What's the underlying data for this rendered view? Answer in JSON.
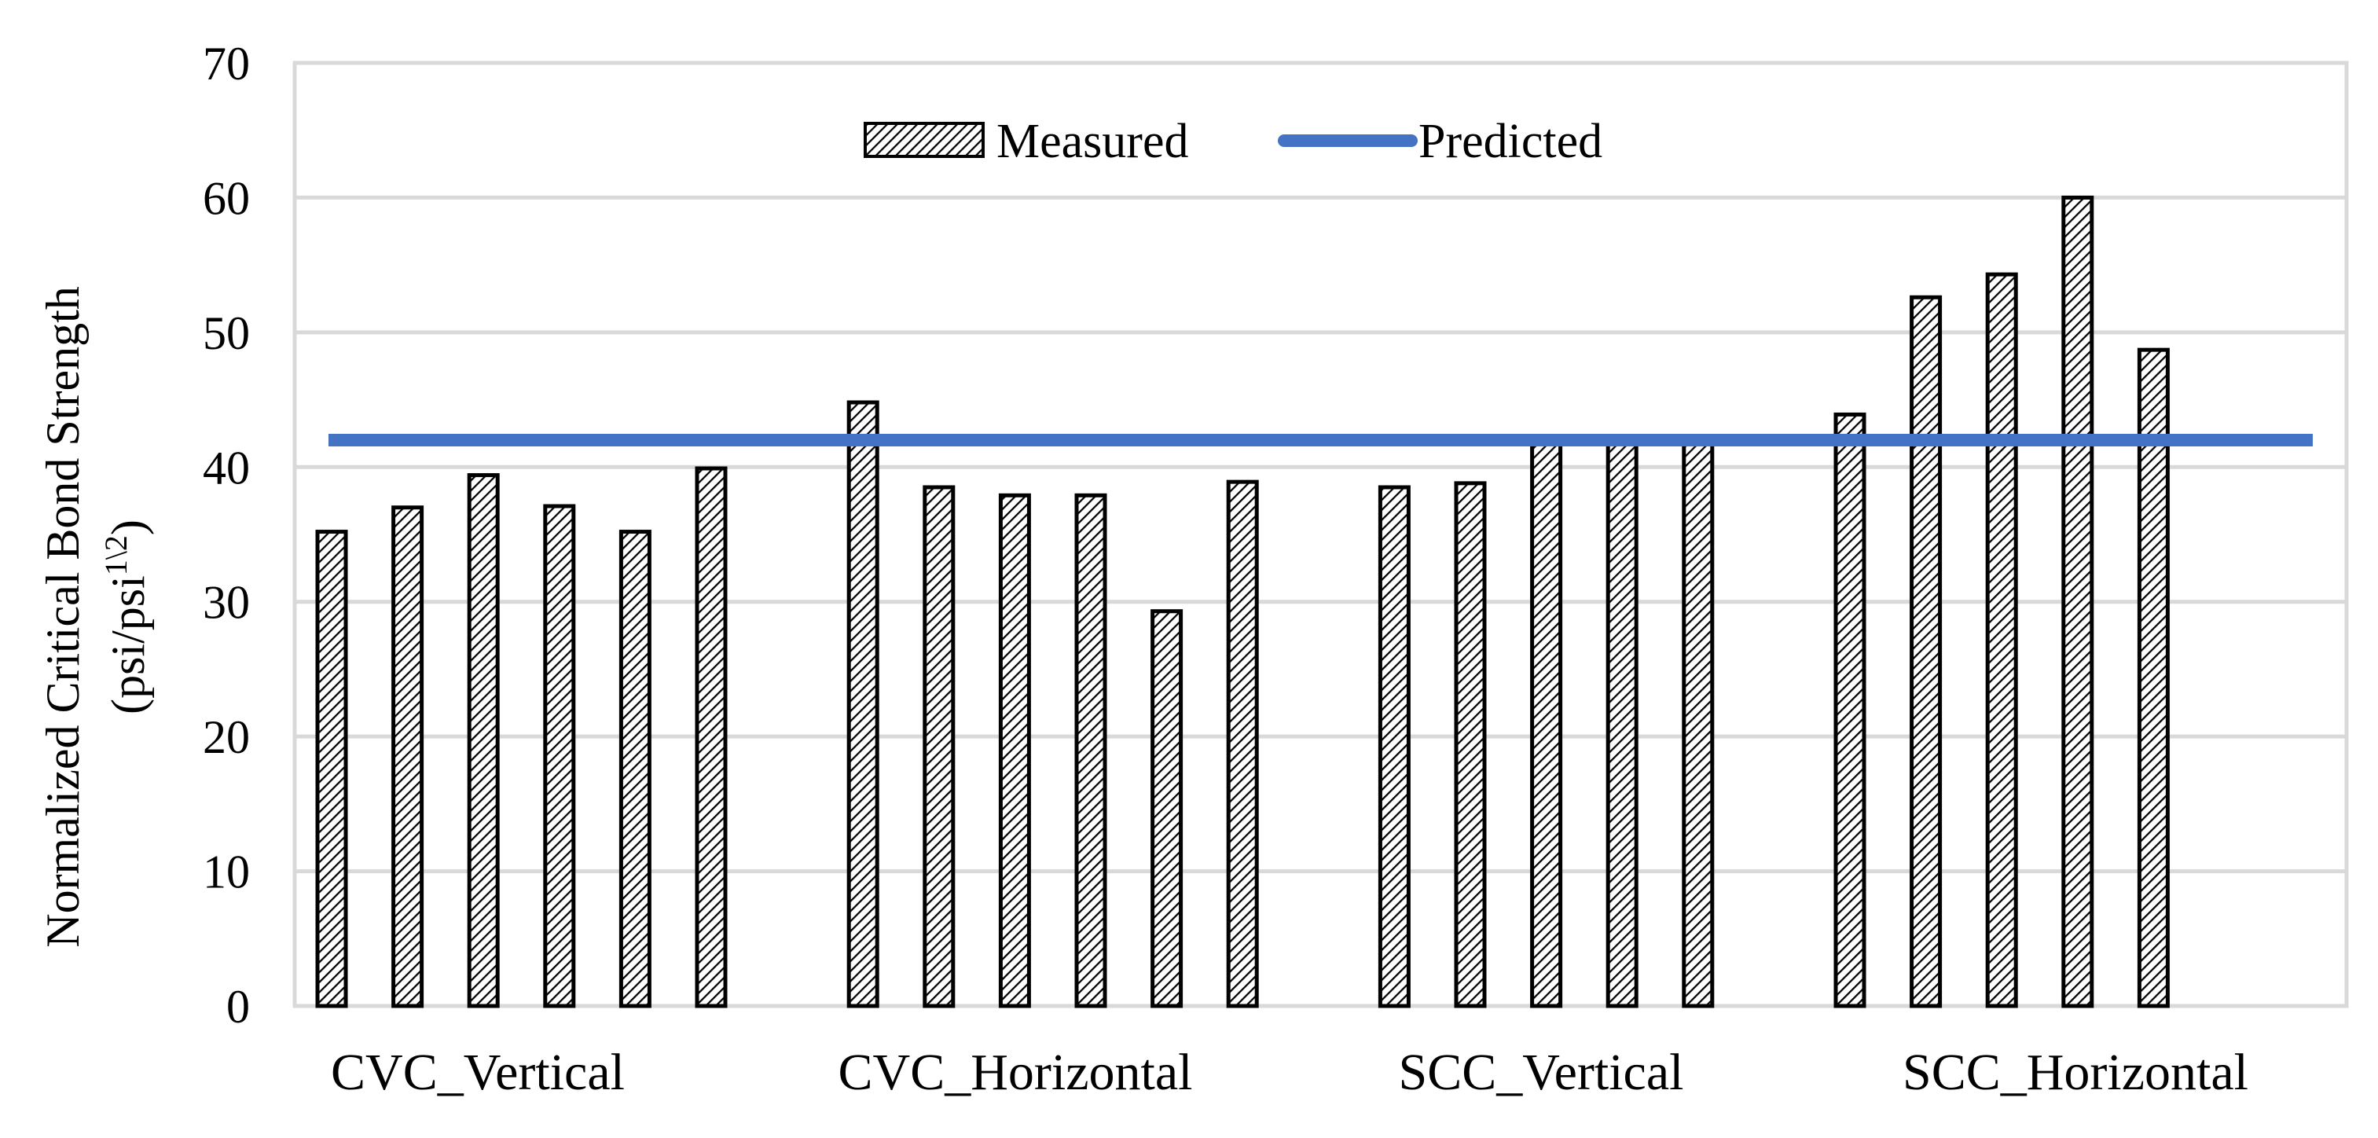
{
  "chart_data": {
    "type": "bar",
    "title": "",
    "xlabel": "",
    "ylabel": "Normalized Critical Bond Strength",
    "ylabel_line2": "(psi/psi",
    "ylabel_sup": "1\\2",
    "ylabel_close": ")",
    "ylim": [
      0,
      70
    ],
    "yticks": [
      0,
      10,
      20,
      30,
      40,
      50,
      60,
      70
    ],
    "yticks_text": [
      "0",
      "10",
      "20",
      "30",
      "40",
      "50",
      "60",
      "70"
    ],
    "grid": true,
    "legend_position": "top-center",
    "groups": [
      {
        "label": "CVC_Vertical",
        "values": [
          35.2,
          37.0,
          39.4,
          37.1,
          35.2,
          39.9
        ]
      },
      {
        "label": "CVC_Horizontal",
        "values": [
          44.8,
          38.5,
          37.9,
          37.9,
          29.3,
          38.9
        ]
      },
      {
        "label": "SCC_Vertical",
        "values": [
          38.5,
          38.8,
          41.9,
          42.3,
          41.9
        ]
      },
      {
        "label": "SCC_Horizontal",
        "values": [
          43.9,
          52.6,
          54.3,
          60.0,
          48.7
        ]
      }
    ],
    "series": [
      {
        "name": "Measured",
        "kind": "bar",
        "pattern": "diagonal-hatch"
      },
      {
        "name": "Predicted",
        "kind": "line",
        "value": 42.0,
        "color": "#4472C4"
      }
    ]
  }
}
